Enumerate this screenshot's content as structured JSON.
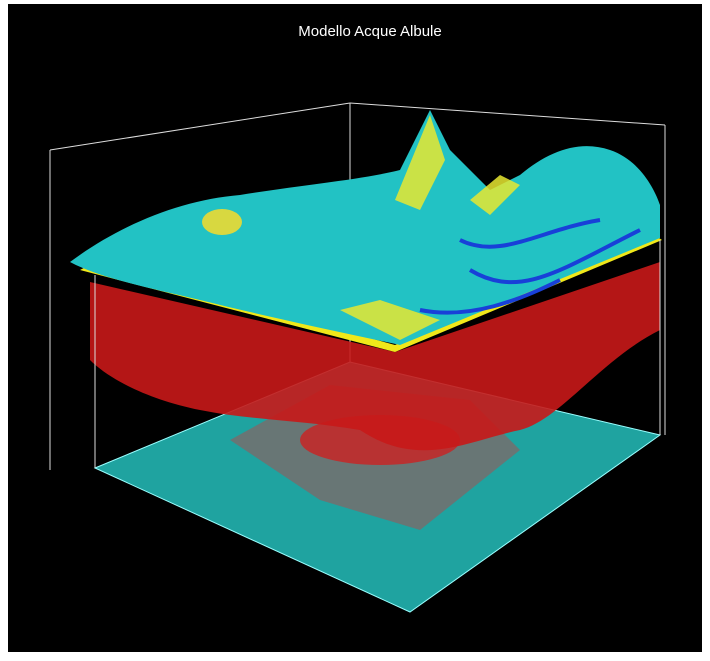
{
  "chart_data": {
    "type": "surface3d",
    "title": "Modello Acque Albule"
  }
}
